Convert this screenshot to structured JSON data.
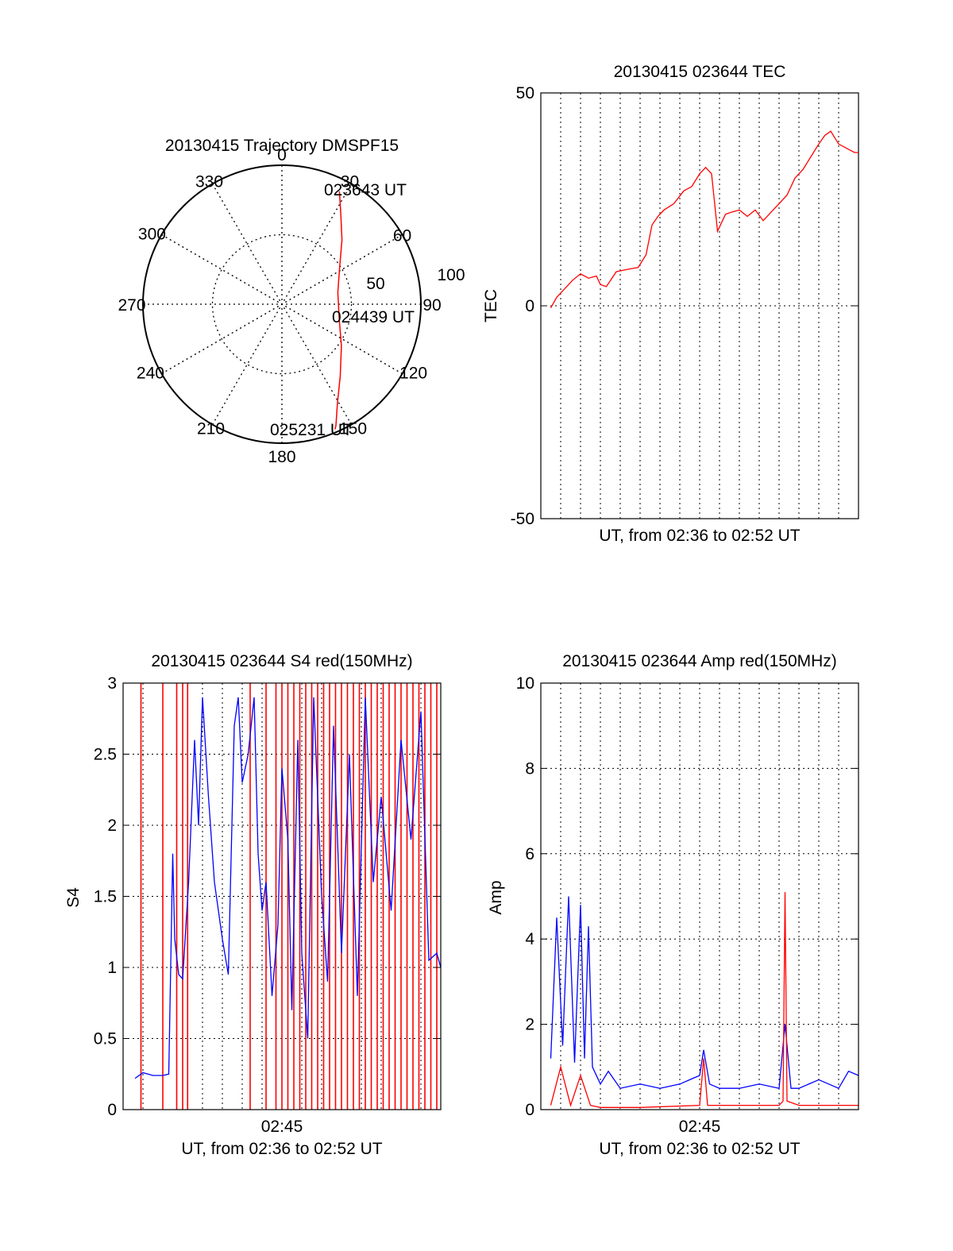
{
  "chart_data": [
    {
      "type": "polar",
      "title": "20130415 Trajectory DMSPF15",
      "azimuth_ticks": [
        "0",
        "30",
        "60",
        "90",
        "120",
        "150",
        "180",
        "210",
        "240",
        "270",
        "300",
        "330"
      ],
      "radial_ticks": [
        "50",
        "100"
      ],
      "grid": true,
      "series": [
        {
          "color": "#ff0000",
          "points": [
            {
              "azimuth_deg": 27,
              "zenith_deg": 82
            },
            {
              "azimuth_deg": 33,
              "zenith_deg": 70
            },
            {
              "azimuth_deg": 43,
              "zenith_deg": 57
            },
            {
              "azimuth_deg": 58,
              "zenith_deg": 44
            },
            {
              "azimuth_deg": 78,
              "zenith_deg": 37
            },
            {
              "azimuth_deg": 103,
              "zenith_deg": 38
            },
            {
              "azimuth_deg": 125,
              "zenith_deg": 47
            },
            {
              "azimuth_deg": 141,
              "zenith_deg": 60
            },
            {
              "azimuth_deg": 151,
              "zenith_deg": 74
            },
            {
              "azimuth_deg": 156,
              "zenith_deg": 86
            },
            {
              "azimuth_deg": 157,
              "zenith_deg": 88
            }
          ]
        }
      ],
      "annotations": [
        "023643 UT",
        "024439 UT",
        "025231 UT"
      ]
    },
    {
      "type": "line",
      "title": "20130415 023644 TEC",
      "xlabel": "UT, from 02:36 to 02:52 UT",
      "ylabel": "TEC",
      "xlim": [
        0,
        16
      ],
      "ylim": [
        -50,
        50
      ],
      "yticks": [
        "50",
        "0",
        "-50"
      ],
      "grid": true,
      "series": [
        {
          "color": "#ff0000",
          "x": [
            0.5,
            0.8,
            1.2,
            1.6,
            2.0,
            2.4,
            2.8,
            3.0,
            3.3,
            3.8,
            4.3,
            4.9,
            5.3,
            5.6,
            5.9,
            6.2,
            6.7,
            7.2,
            7.6,
            8.0,
            8.3,
            8.6,
            8.9,
            9.3,
            9.6,
            10.0,
            10.4,
            10.8,
            11.2,
            11.6,
            12.0,
            12.4,
            12.8,
            13.2,
            13.6,
            14.0,
            14.3,
            14.6,
            15.0,
            15.4,
            15.8,
            16.0
          ],
          "y": [
            -0.5,
            2,
            4,
            6,
            7.5,
            6.5,
            7,
            5,
            4.5,
            8,
            8.5,
            9,
            12,
            19,
            21,
            22.5,
            24,
            27,
            28,
            31,
            32.5,
            31,
            17.5,
            21.5,
            22,
            22.5,
            21,
            22.5,
            20,
            22,
            24,
            26,
            30,
            32,
            35,
            38,
            40,
            41,
            38,
            37,
            36,
            36
          ]
        }
      ]
    },
    {
      "type": "line",
      "title": "20130415 023644 S4 red(150MHz)",
      "xlabel": "UT, from 02:36 to 02:52 UT",
      "ylabel": "S4",
      "xlim": [
        0,
        16
      ],
      "ylim": [
        0,
        3
      ],
      "xticks": [
        "02:45"
      ],
      "yticks": [
        "0",
        "0.5",
        "1",
        "1.5",
        "2",
        "2.5",
        "3"
      ],
      "grid": true,
      "series": [
        {
          "color": "#0000ff",
          "x": [
            0.6,
            1.0,
            1.5,
            2.0,
            2.3,
            2.5,
            2.6,
            2.8,
            3.0,
            3.3,
            3.6,
            3.8,
            4.0,
            4.3,
            4.6,
            5.0,
            5.3,
            5.6,
            5.8,
            6.0,
            6.3,
            6.6,
            6.8,
            7.0,
            7.2,
            7.5,
            7.8,
            8.0,
            8.3,
            8.5,
            8.8,
            9.0,
            9.3,
            9.6,
            10.0,
            10.3,
            10.6,
            11.0,
            11.4,
            11.8,
            12.2,
            12.6,
            13.0,
            13.5,
            14.0,
            14.5,
            15.0,
            15.4,
            15.8,
            16.0
          ],
          "y": [
            0.22,
            0.26,
            0.24,
            0.24,
            0.25,
            1.8,
            1.2,
            0.95,
            0.92,
            1.6,
            2.6,
            2.0,
            2.9,
            2.2,
            1.6,
            1.2,
            0.95,
            2.7,
            2.9,
            2.3,
            2.5,
            2.9,
            1.8,
            1.4,
            1.6,
            0.8,
            1.3,
            2.4,
            1.9,
            0.7,
            2.6,
            1.1,
            0.5,
            2.9,
            1.5,
            0.9,
            2.7,
            1.1,
            2.5,
            0.8,
            2.9,
            1.6,
            2.2,
            1.4,
            2.6,
            1.9,
            2.8,
            1.05,
            1.1,
            1.0
          ]
        },
        {
          "color": "#ff0000",
          "spikes_x": [
            0.9,
            2.0,
            2.7,
            3.0,
            3.25,
            6.4,
            7.2,
            7.7,
            8.0,
            8.3,
            8.6,
            8.9,
            9.2,
            9.5,
            9.8,
            10.1,
            10.4,
            10.7,
            11.0,
            11.3,
            11.6,
            11.9,
            12.2,
            12.5,
            12.8,
            13.1,
            13.4,
            13.7,
            14.0,
            14.3,
            14.6,
            14.9,
            15.2,
            15.5,
            15.8
          ]
        }
      ]
    },
    {
      "type": "line",
      "title": "20130415 023644 Amp red(150MHz)",
      "xlabel": "UT, from 02:36 to 02:52 UT",
      "ylabel": "Amp",
      "xlim": [
        0,
        16
      ],
      "ylim": [
        0,
        10
      ],
      "xticks": [
        "02:45"
      ],
      "yticks": [
        "0",
        "2",
        "4",
        "6",
        "8",
        "10"
      ],
      "grid": true,
      "series": [
        {
          "color": "#0000ff",
          "x": [
            0.5,
            0.8,
            1.1,
            1.4,
            1.7,
            2.0,
            2.2,
            2.4,
            2.6,
            3.0,
            3.4,
            4.0,
            5.0,
            6.0,
            7.0,
            7.5,
            8.0,
            8.2,
            8.5,
            9.0,
            10.0,
            11.0,
            12.0,
            12.3,
            12.6,
            13.0,
            14.0,
            14.5,
            15.0,
            15.5,
            16.0
          ],
          "y": [
            1.2,
            4.5,
            1.5,
            5.0,
            1.1,
            4.8,
            1.2,
            4.3,
            1.0,
            0.6,
            0.9,
            0.5,
            0.6,
            0.5,
            0.6,
            0.7,
            0.8,
            1.4,
            0.6,
            0.5,
            0.5,
            0.6,
            0.5,
            2.0,
            0.5,
            0.5,
            0.7,
            0.6,
            0.5,
            0.9,
            0.8
          ]
        },
        {
          "color": "#ff0000",
          "x": [
            0.5,
            1.0,
            1.5,
            2.0,
            2.5,
            3.0,
            5.0,
            8.0,
            8.2,
            8.4,
            10.0,
            12.0,
            12.2,
            12.3,
            12.4,
            13.0,
            16.0
          ],
          "y": [
            0.1,
            1.0,
            0.1,
            0.8,
            0.1,
            0.05,
            0.05,
            0.1,
            1.2,
            0.1,
            0.1,
            0.1,
            0.2,
            5.1,
            0.2,
            0.1,
            0.1
          ]
        }
      ]
    }
  ]
}
